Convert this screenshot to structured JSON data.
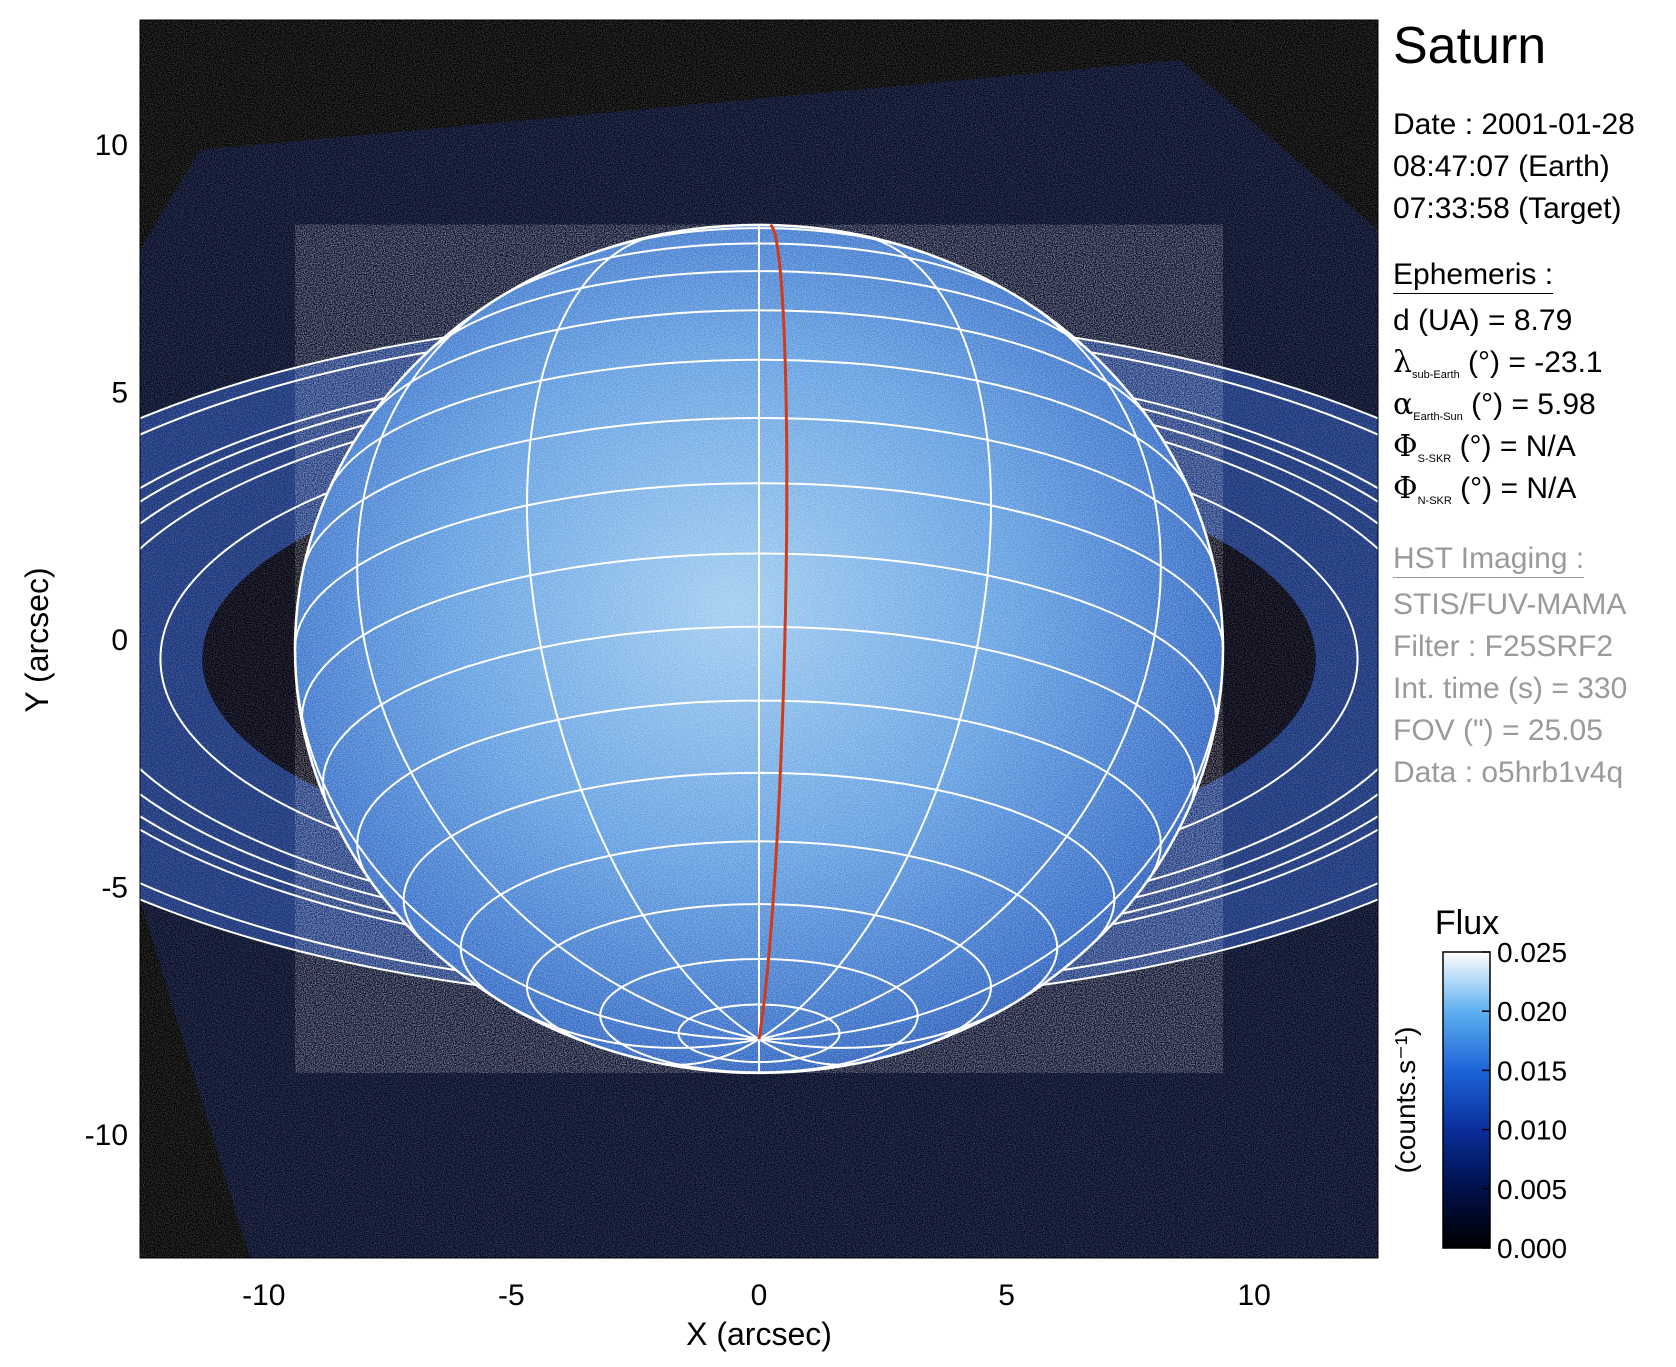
{
  "figure": {
    "xlabel": "X (arcsec)",
    "ylabel": "Y (arcsec)",
    "x_ticks": [
      "-10",
      "-5",
      "0",
      "5",
      "10"
    ],
    "y_ticks": [
      "10",
      "5",
      "0",
      "-5",
      "-10"
    ],
    "x_range": [
      -12.5,
      12.5
    ],
    "y_range": [
      -12.5,
      12.5
    ]
  },
  "info": {
    "title": "Saturn",
    "date_line": "Date : 2001-01-28",
    "earth_time": "08:47:07 (Earth)",
    "target_time": "07:33:58 (Target)",
    "ephemeris_heading": "Ephemeris :",
    "distance": "d (UA)    = 8.79",
    "lambda_sym": "λ",
    "lambda_sub": "sub-Earth",
    "lambda_val": " (°) = -23.1",
    "alpha_sym": "α",
    "alpha_sub": "Earth-Sun",
    "alpha_val": " (°) = 5.98",
    "phi_s_sym": "Φ",
    "phi_s_sub": "S-SKR",
    "phi_s_val": " (°)   = N/A",
    "phi_n_sym": "Φ",
    "phi_n_sub": "N-SKR",
    "phi_n_val": " (°)   = N/A",
    "hst_heading": "HST Imaging :",
    "instrument": "STIS/FUV-MAMA",
    "filter": "Filter : F25SRF2",
    "int_time": "Int. time (s) = 330",
    "fov": "FOV (\") = 25.05",
    "data_id": "Data : o5hrb1v4q"
  },
  "colorbar": {
    "title": "Flux",
    "label": "(counts.s⁻¹)",
    "ticks": [
      "0.025",
      "0.020",
      "0.015",
      "0.010",
      "0.005",
      "0.000"
    ]
  },
  "colors": {
    "background": "#000000",
    "grid": "#ffffff",
    "meridian": "#d23a1a",
    "ring": "#1a3a8a",
    "disk_center": "#8fc4ee",
    "disk_edge": "#1f55b8"
  }
}
